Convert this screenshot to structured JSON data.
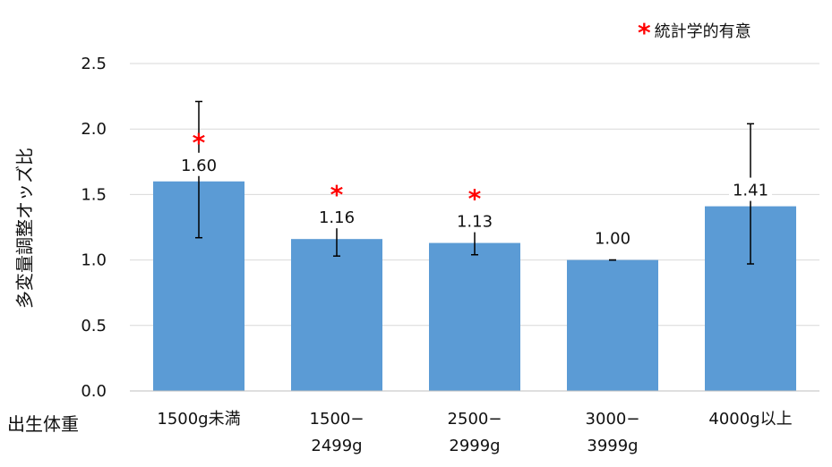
{
  "chart_data": {
    "type": "bar",
    "categories": [
      [
        "1500g未満"
      ],
      [
        "1500−",
        "2499g"
      ],
      [
        "2500−",
        "2999g"
      ],
      [
        "3000−",
        "3999g"
      ],
      [
        "4000g以上"
      ]
    ],
    "values": [
      1.6,
      1.16,
      1.13,
      1.0,
      1.41
    ],
    "value_labels": [
      "1.60",
      "1.16",
      "1.13",
      "1.00",
      "1.41"
    ],
    "ci_lower": [
      1.17,
      1.03,
      1.04,
      1.0,
      0.97
    ],
    "ci_upper": [
      2.21,
      1.3,
      1.22,
      1.0,
      2.04
    ],
    "significant": [
      true,
      true,
      true,
      false,
      false
    ],
    "significance_marker": "*",
    "ylim": [
      0,
      2.5
    ],
    "yticks": [
      "0.0",
      "0.5",
      "1.0",
      "1.5",
      "2.0",
      "2.5"
    ],
    "ytick_values": [
      0,
      0.5,
      1.0,
      1.5,
      2.0,
      2.5
    ],
    "ylabel": "多変量調整オッズ比",
    "xlabel": "出生体重",
    "legend": "統計学的有意",
    "legend_position": "top-right",
    "grid": true,
    "bar_color": "#5b9bd5",
    "marker_color": "#ff0000",
    "grid_color": "#d9d9d9",
    "text_color": "#111111"
  }
}
